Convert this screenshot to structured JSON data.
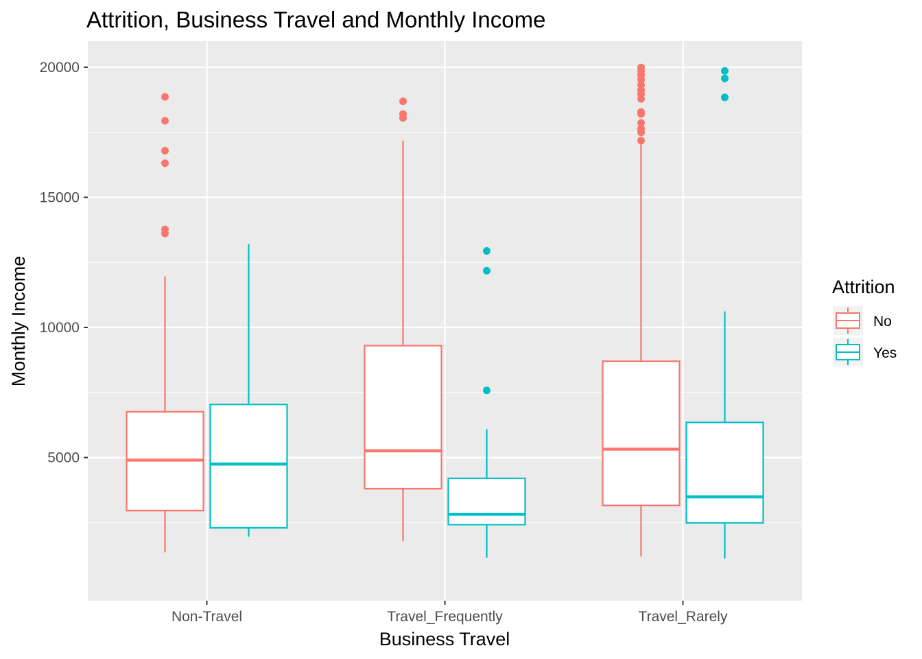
{
  "chart_data": {
    "type": "boxplot",
    "title": "Attrition, Business Travel and Monthly Income",
    "xlabel": "Business Travel",
    "ylabel": "Monthly Income",
    "ylim": [
      -500,
      21000
    ],
    "yticks": [
      5000,
      10000,
      15000,
      20000
    ],
    "categories": [
      "Non-Travel",
      "Travel_Frequently",
      "Travel_Rarely"
    ],
    "legend": {
      "title": "Attrition",
      "position": "right"
    },
    "grid": true,
    "series": [
      {
        "name": "No",
        "color": "#F8766D",
        "boxes": [
          {
            "category": "Non-Travel",
            "lower_whisker": 1359,
            "q1": 2960,
            "median": 4900,
            "q3": 6760,
            "upper_whisker": 11960,
            "outliers": [
              18860,
              17940,
              16790,
              16310,
              13770,
              13610
            ]
          },
          {
            "category": "Travel_Frequently",
            "lower_whisker": 1790,
            "q1": 3800,
            "median": 5260,
            "q3": 9300,
            "upper_whisker": 17170,
            "outliers": [
              18690,
              18200,
              18050
            ]
          },
          {
            "category": "Travel_Rarely",
            "lower_whisker": 1200,
            "q1": 3160,
            "median": 5320,
            "q3": 8700,
            "upper_whisker": 17100,
            "outliers": [
              19990,
              19850,
              19700,
              19520,
              19320,
              19120,
              18960,
              18780,
              18280,
              18200,
              17860,
              17640,
              17500,
              17180
            ]
          }
        ]
      },
      {
        "name": "Yes",
        "color": "#00BFC4",
        "boxes": [
          {
            "category": "Non-Travel",
            "lower_whisker": 1960,
            "q1": 2300,
            "median": 4750,
            "q3": 7040,
            "upper_whisker": 13200,
            "outliers": []
          },
          {
            "category": "Travel_Frequently",
            "lower_whisker": 1150,
            "q1": 2420,
            "median": 2820,
            "q3": 4200,
            "upper_whisker": 6090,
            "outliers": [
              12940,
              12180,
              7580
            ]
          },
          {
            "category": "Travel_Rarely",
            "lower_whisker": 1120,
            "q1": 2490,
            "median": 3490,
            "q3": 6350,
            "upper_whisker": 10620,
            "outliers": [
              19860,
              19570,
              18840
            ]
          }
        ]
      }
    ]
  }
}
